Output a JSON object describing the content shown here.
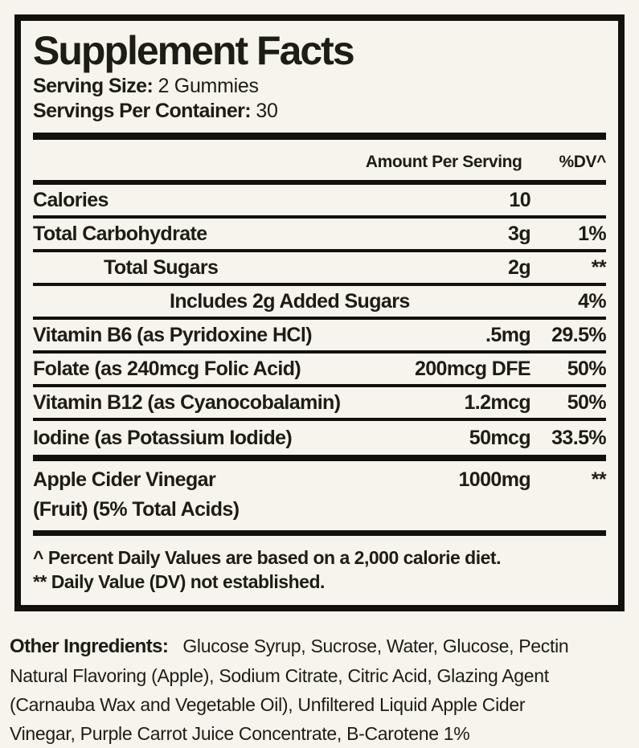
{
  "label": {
    "title": "Supplement Facts",
    "serving_size_label": "Serving Size:",
    "serving_size_value": "2 Gummies",
    "servings_label": "Servings Per Container:",
    "servings_value": "30",
    "columns": {
      "amount": "Amount Per Serving",
      "dv": "%DV^"
    },
    "rows": [
      {
        "name": "Calories",
        "amount": "10",
        "dv": ""
      },
      {
        "name": "Total Carbohydrate",
        "amount": "3g",
        "dv": "1%"
      },
      {
        "name": "Total Sugars",
        "amount": "2g",
        "dv": "**"
      },
      {
        "name": "Includes 2g Added Sugars",
        "amount": "",
        "dv": "4%"
      },
      {
        "name": "Vitamin B6 (as Pyridoxine HCl)",
        "amount": ".5mg",
        "dv": "29.5%"
      },
      {
        "name": "Folate (as 240mcg Folic Acid)",
        "amount": "200mcg DFE",
        "dv": "50%"
      },
      {
        "name": "Vitamin B12 (as Cyanocobalamin)",
        "amount": "1.2mcg",
        "dv": "50%"
      },
      {
        "name": "Iodine (as Potassium Iodide)",
        "amount": "50mcg",
        "dv": "33.5%"
      }
    ],
    "acv_row": {
      "name": "Apple Cider Vinegar",
      "name_line2": "(Fruit) (5% Total Acids)",
      "amount": "1000mg",
      "dv": "**"
    },
    "footnote1": "^ Percent Daily Values are based on a 2,000 calorie diet.",
    "footnote2": "** Daily Value (DV) not established."
  },
  "other_ingredients": {
    "label": "Other Ingredients:",
    "line1": "Glucose Syrup, Sucrose, Water, Glucose, Pectin",
    "line2": "Natural Flavoring (Apple), Sodium Citrate, Citric Acid, Glazing Agent",
    "line3": "(Carnauba Wax and Vegetable Oil), Unfiltered Liquid Apple Cider",
    "line4": "Vinegar, Purple Carrot Juice Concentrate, B-Carotene 1%"
  },
  "colors": {
    "background": "#f6f4ed",
    "ink": "#1e1d15",
    "border": "#12110b"
  }
}
